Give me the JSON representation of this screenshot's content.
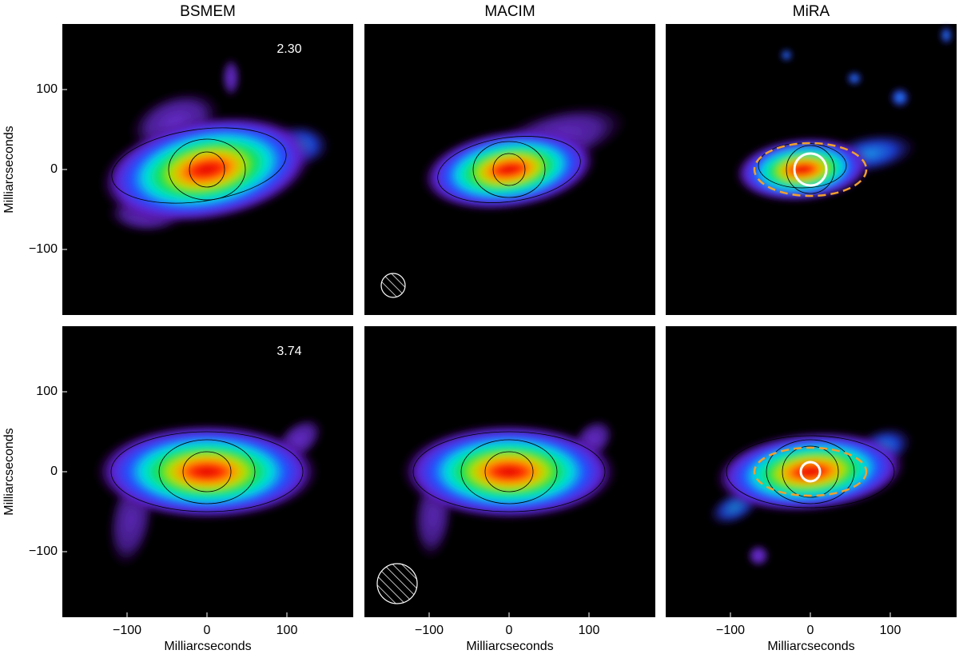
{
  "chart_data": {
    "type": "image-grid",
    "columns": [
      "BSMEM",
      "MACIM",
      "MiRA"
    ],
    "xlabel": "Milliarcseconds",
    "ylabel": "Milliarcseconds",
    "xlim": [
      -181,
      183
    ],
    "ylim": [
      -182,
      182
    ],
    "xticks": [
      {
        "value": -100,
        "label": "−100"
      },
      0,
      100
    ],
    "yticks": [
      {
        "value": -100,
        "label": "−100"
      },
      0,
      100
    ],
    "rows": [
      {
        "annotation": "2.30"
      },
      {
        "annotation": "3.74"
      }
    ]
  }
}
